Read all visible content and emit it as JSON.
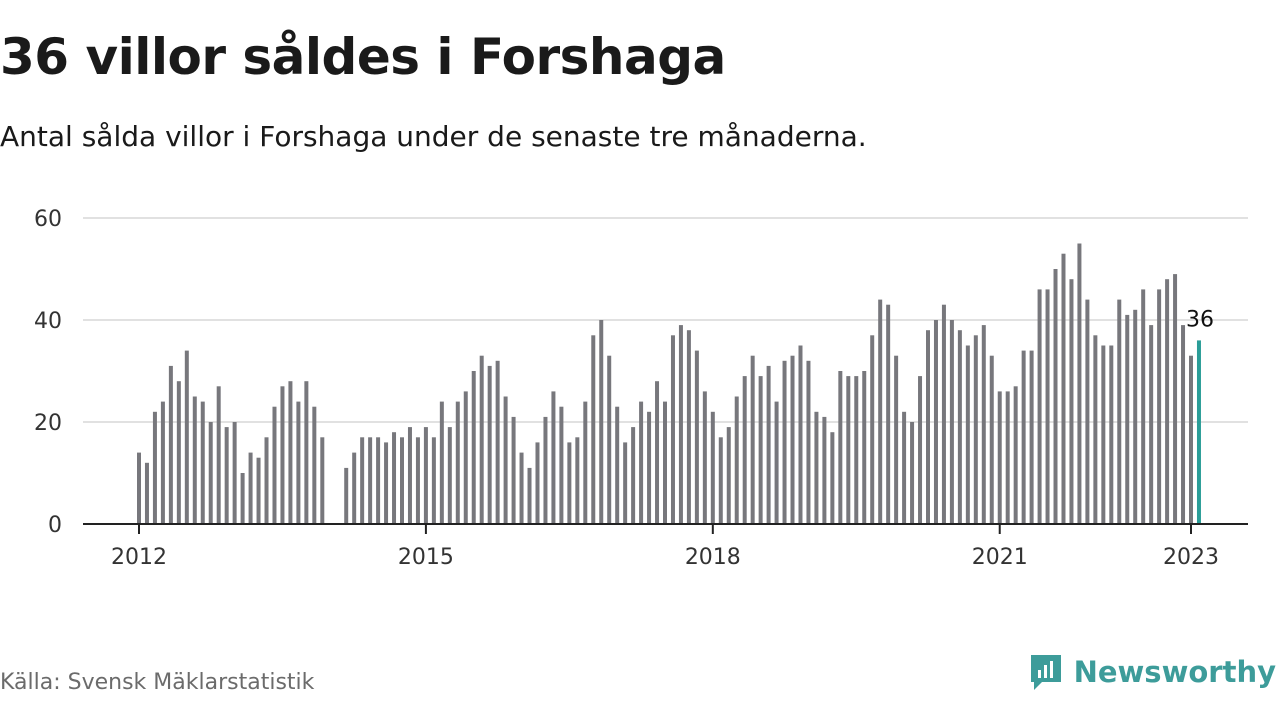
{
  "title": "36 villor såldes i Forshaga",
  "subtitle": "Antal sålda villor i Forshaga under de senaste tre månaderna.",
  "source": "Källa: Svensk Mäklarstatistik",
  "brand": {
    "name": "Newsworthy",
    "icon": "newsworthy-logo-icon",
    "color": "#3d9c9a"
  },
  "chart_data": {
    "type": "bar",
    "x_start": "2012-01",
    "x_step": "month",
    "xlim": [
      "2011-06",
      "2023-07"
    ],
    "ylim": [
      0,
      60
    ],
    "yticks": [
      0,
      20,
      40,
      60
    ],
    "xticks": [
      "2012",
      "2015",
      "2018",
      "2021",
      "2023"
    ],
    "grid": "horizontal",
    "values": [
      14,
      12,
      22,
      24,
      31,
      28,
      34,
      25,
      24,
      20,
      27,
      19,
      20,
      10,
      14,
      13,
      17,
      23,
      27,
      28,
      24,
      28,
      23,
      17,
      null,
      null,
      11,
      14,
      17,
      17,
      17,
      16,
      18,
      17,
      19,
      17,
      19,
      17,
      24,
      19,
      24,
      26,
      30,
      33,
      31,
      32,
      25,
      21,
      14,
      11,
      16,
      21,
      26,
      23,
      16,
      17,
      24,
      37,
      40,
      33,
      23,
      16,
      19,
      24,
      22,
      28,
      24,
      37,
      39,
      38,
      34,
      26,
      22,
      17,
      19,
      25,
      29,
      33,
      29,
      31,
      24,
      32,
      33,
      35,
      32,
      22,
      21,
      18,
      30,
      29,
      29,
      30,
      37,
      44,
      43,
      33,
      22,
      20,
      29,
      38,
      40,
      43,
      40,
      38,
      35,
      37,
      39,
      33,
      26,
      26,
      27,
      34,
      34,
      46,
      46,
      50,
      53,
      48,
      55,
      44,
      37,
      35,
      35,
      44,
      41,
      42,
      46,
      39,
      46,
      48,
      49,
      39,
      33,
      36
    ],
    "highlight_label": "36",
    "bar_color": "#77777c",
    "highlight_color": "#2a9d98"
  }
}
